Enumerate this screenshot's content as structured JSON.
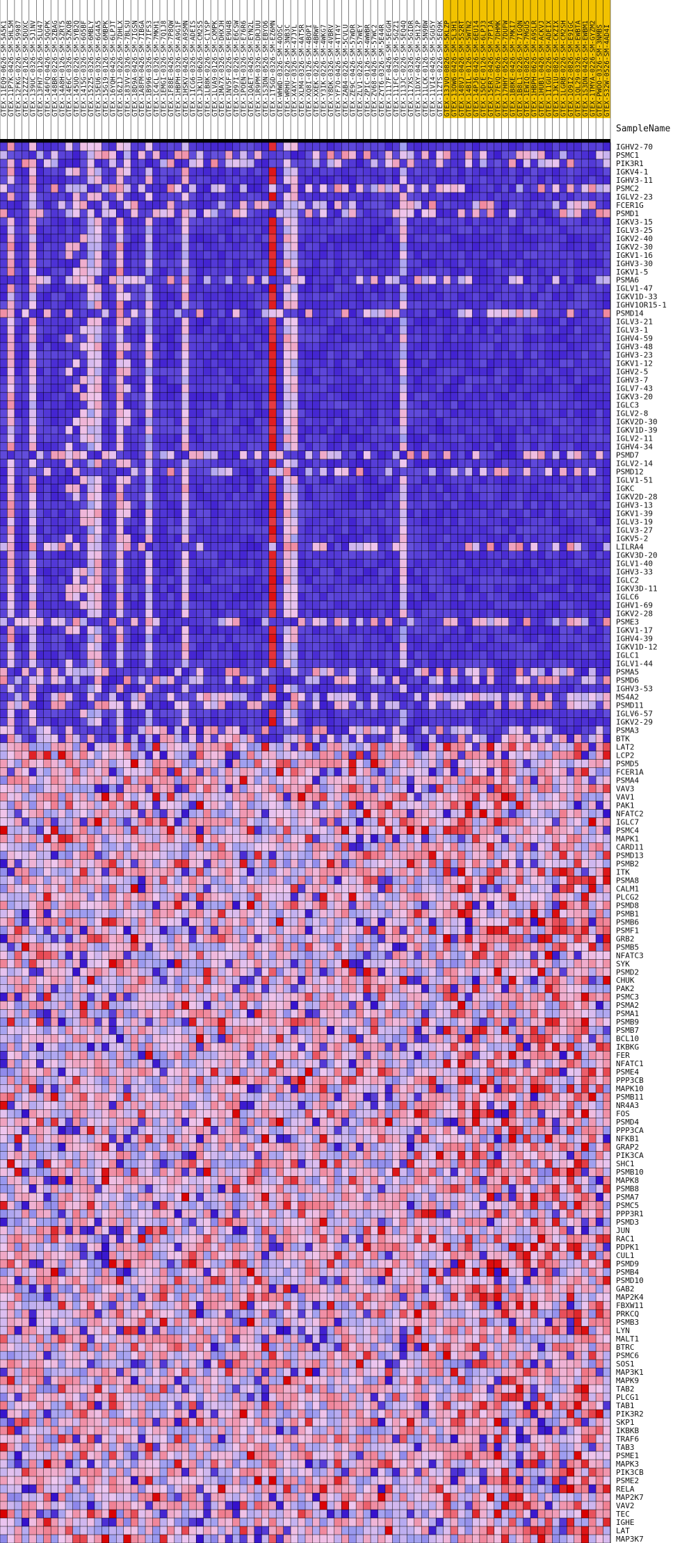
{
  "chart_data": {
    "type": "heatmap",
    "corner_label": "SampleName",
    "colors": {
      "low": "#2b04c9",
      "mid_low": "#9f9ff0",
      "neutral": "#efc7ef",
      "mid_high": "#f07a8a",
      "high": "#d90000",
      "highlight": "#f2c200",
      "grid": "#000000",
      "separator": "#000000"
    },
    "highlighted_columns_start_index": 61,
    "columns": [
      "GTEX-11EQ9-0626-SM-5A5K1",
      "GTEX-11P7K-0426-SM-5HL5M",
      "GTEX-12FKG-0226-SM-59987",
      "GTEX-12ZZZ-0126-SM-5DUXC",
      "GTEX-139UC-0326-SM-5J1NV",
      "GTEX-13FH7-0126-SM-5LU47",
      "GTEX-146FQ-0426-SM-5QGPK",
      "GTEX-148BR-0226-SM-5ZBAG",
      "GTEX-14A8H-0126-SM-5ZRT5",
      "GTEX-14E6C-0326-SM-5ZKQB",
      "GTEX-145UO-0226-SM-5YB2Q",
      "GTEX-1415G-0326-SM-6O5BF",
      "GTEX-152Z5-0326-SM-6MBLY",
      "GTEX-15EU6-0326-SM-6G4A5",
      "GTEX-15G19-0126-SM-6MBPK",
      "GTEX-16YQH-0426-SM-6LPJT",
      "GTEX-16Z1J-0226-SM-7DHLX",
      "GTEX-183VV-0326-SM-7BLSU",
      "GTEX-18D9A-0426-SM-7IGSN",
      "GTEX-1A8FM-0426-SM-7IBGA",
      "GTEX-1B996-0326-SM-7IFS3",
      "GTEX-1C4CL-0326-SM-7MKH1",
      "GTEX-1EMGI-0326-SM-7Q1J8",
      "GTEX-1F88E-0426-SM-7P8QW",
      "GTEX-1HBPH-0326-SM-A9G1F",
      "GTEX-1HSKV-0426-SM-A9SMN",
      "GTEX-1ICG6-0326-SM-ADEIS",
      "GTEX-1JK1U-0626-SM-CM2S5",
      "GTEX-1LB8K-0226-SM-C1YSP",
      "GTEX-1LVA9-0126-SM-CXMPK",
      "GTEX-1MA7X-0326-SM-DHXJH",
      "GTEX-1NV5F-0226-SM-E9U4B",
      "GTEX-1O97I-0226-SM-E6CSW",
      "GTEX-1POEN-0326-SM-E76R6",
      "GTEX-1QAET-0426-SM-EYN2L",
      "GTEX-1R9PM-0326-SM-DRJUU",
      "GTEX-1S3DN-0526-SM-EBYO6",
      "GTEX-1T5GD-0326-SM-EZ6MN",
      "GTEX-WHWD-0326-SM-4OOSC",
      "GTEX-WRHU-0226-SM-3NB3C",
      "GTEX-X4XY-0326-SM-47JYL",
      "GTEX-XLM4-0326-SM-4AT5R",
      "GTEX-XQ8I-0126-SM-4BOPI",
      "GTEX-XXEK-0226-SM-4BRWF",
      "GTEX-Y3IK-0226-SM-4WKG7",
      "GTEX-Y8DK-0326-SM-4VBRV",
      "GTEX-YF7O-0426-SM-4TT4Y",
      "GTEX-ZAB4-0226-SM-5CVLU",
      "GTEX-ZE9C-0426-SM-57WDR",
      "GTEX-ZLV1-0226-SM-57WEY",
      "GTEX-ZPIC-0126-SM-4WWBR",
      "GTEX-ZV68-0426-SM-57WC2",
      "GTEX-ZYT6-0326-SM-5E44R",
      "GTEX-1117F-0426-SM-5EGGH",
      "GTEX-111FC-0326-SM-5GZZ1",
      "GTEX-113JC-0226-SM-5EQ4Q",
      "GTEX-117XS-0326-SM-5GIDR",
      "GTEX-11DXY-0426-SM-5H12P",
      "GTEX-11LCK-0126-SM-5N9BW",
      "GTEX-11VI4-0426-SM-5GU5Y",
      "GTEX-11ZTS-0226-SM-5EQ9K",
      "GTEX-13JVO-0826-SM-5KLZP",
      "GTEX-13OW6-0426-SM-5L3H1",
      "GTEX-148VJ-0426-SM-5S2RT",
      "GTEX-14BIL-0126-SM-5WTN2",
      "GTEX-14PJ6-0426-SM-6EU14",
      "GTEX-15DCE-0126-SM-6LPJ3",
      "GTEX-15ER7-0426-SM-7PTJA",
      "GTEX-17EVQ-0626-SM-7DHMK",
      "GTEX-17HHY-0526-SM-7DUFW",
      "GTEX-1B8KE-0426-SM-7MKI7",
      "GTEX-1B8L1-0226-SM-7IGQN",
      "GTEX-1EWIQ-0826-SM-7MGU5",
      "GTEX-1HBPH-0626-SM-A9SLR",
      "GTEX-1HUB1-0426-SM-ACKVJ",
      "GTEX-1I1GU-0226-SM-ADEIX",
      "GTEX-1JK1U-0826-SM-CKZIX",
      "GTEX-1LGRB-0226-SM-CM2SH",
      "GTEX-1O9I2-0826-SM-E9IGC",
      "GTEX-1QL29-0326-SM-EWBTA",
      "GTEX-1S3DN-0426-SM-EWBM1",
      "GTEX-1TMYA-0226-SM-GYZM2",
      "GTEX-PWOO-0326-SM-3NMBS",
      "GTEX-S32W-0526-SM-4AD4I"
    ],
    "rows": [
      "IGHV2-70",
      "PSMC1",
      "PIK3R1",
      "IGKV4-1",
      "IGHV3-11",
      "PSMC2",
      "IGLV2-23",
      "FCER1G",
      "PSMD1",
      "IGKV3-15",
      "IGLV3-25",
      "IGKV2-40",
      "IGKV2-30",
      "IGKV1-16",
      "IGHV3-30",
      "IGKV1-5",
      "PSMA6",
      "IGLV1-47",
      "IGKV1D-33",
      "IGHV1OR15-1",
      "PSMD14",
      "IGLV3-21",
      "IGLV3-1",
      "IGHV4-59",
      "IGHV3-48",
      "IGHV3-23",
      "IGKV1-12",
      "IGHV2-5",
      "IGHV3-7",
      "IGLV7-43",
      "IGKV3-20",
      "IGLC3",
      "IGLV2-8",
      "IGKV2D-30",
      "IGKV1D-39",
      "IGLV2-11",
      "IGHV4-34",
      "PSMD7",
      "IGLV2-14",
      "PSMD12",
      "IGLV1-51",
      "IGKC",
      "IGKV2D-28",
      "IGHV3-13",
      "IGKV1-39",
      "IGLV3-19",
      "IGLV3-27",
      "IGKV5-2",
      "LILRA4",
      "IGKV3D-20",
      "IGLV1-40",
      "IGHV3-33",
      "IGLC2",
      "IGKV3D-11",
      "IGLC6",
      "IGHV1-69",
      "IGKV2-28",
      "PSME3",
      "IGKV1-17",
      "IGHV4-39",
      "IGKV1D-12",
      "IGLC1",
      "IGLV1-44",
      "PSMA5",
      "PSMD6",
      "IGHV3-53",
      "MS4A2",
      "PSMD11",
      "IGLV6-57",
      "IGKV2-29",
      "PSMA3",
      "BTK",
      "LAT2",
      "LCP2",
      "PSMD5",
      "FCER1A",
      "PSMA4",
      "VAV3",
      "VAV1",
      "PAK1",
      "NFATC2",
      "IGLC7",
      "PSMC4",
      "MAPK1",
      "CARD11",
      "PSMD13",
      "PSMB2",
      "ITK",
      "PSMA8",
      "CALM1",
      "PLCG2",
      "PSMD8",
      "PSMB1",
      "PSMB6",
      "PSMF1",
      "GRB2",
      "PSMB5",
      "NFATC3",
      "SYK",
      "PSMD2",
      "CHUK",
      "PAK2",
      "PSMC3",
      "PSMA2",
      "PSMA1",
      "PSMB9",
      "PSMB7",
      "BCL10",
      "IKBKG",
      "FER",
      "NFATC1",
      "PSME4",
      "PPP3CB",
      "MAPK10",
      "PSMB11",
      "NR4A3",
      "FOS",
      "PSMD4",
      "PPP3CA",
      "NFKB1",
      "GRAP2",
      "PIK3CA",
      "SHC1",
      "PSMB10",
      "MAPK8",
      "PSMB8",
      "PSMA7",
      "PSMC5",
      "PPP3R1",
      "PSMD3",
      "JUN",
      "RAC1",
      "PDPK1",
      "CUL1",
      "PSMD9",
      "PSMB4",
      "PSMD10",
      "GAB2",
      "MAP2K4",
      "FBXW11",
      "PRKCQ",
      "PSMB3",
      "LYN",
      "MALT1",
      "BTRC",
      "PSMC6",
      "SOS1",
      "MAP3K1",
      "MAPK9",
      "TAB2",
      "PLCG1",
      "TAB1",
      "PIK3R2",
      "SKP1",
      "IKBKB",
      "TRAF6",
      "TAB3",
      "PSME1",
      "MAPK3",
      "PIK3CB",
      "PSME2",
      "RELA",
      "MAP2K7",
      "VAV2",
      "TEC",
      "IGHE",
      "LAT",
      "MAP3K7"
    ],
    "immunoglobulin_rows": [
      0,
      3,
      4,
      6,
      9,
      10,
      11,
      12,
      13,
      14,
      15,
      17,
      18,
      19,
      21,
      22,
      23,
      24,
      25,
      26,
      27,
      28,
      29,
      30,
      31,
      32,
      33,
      34,
      35,
      36,
      38,
      40,
      41,
      42,
      43,
      44,
      45,
      46,
      47,
      49,
      50,
      51,
      52,
      53,
      54,
      55,
      56,
      58,
      59,
      60,
      61,
      62,
      65,
      68,
      69
    ],
    "immunoglobulin_values": {
      "base": 0.06,
      "light_columns": {
        "1": 0.55,
        "4": 0.5,
        "12": 0.45,
        "13": 0.5,
        "16": 0.55,
        "20": 0.45,
        "25": 0.5,
        "39": 0.5,
        "40": 0.45,
        "55": 0.45
      },
      "high_columns": {
        "37": 0.97
      }
    },
    "light_band_columns": [
      9,
      10,
      11,
      12,
      13,
      16,
      17
    ],
    "seed": 20240611,
    "value_range": [
      0,
      1
    ]
  }
}
